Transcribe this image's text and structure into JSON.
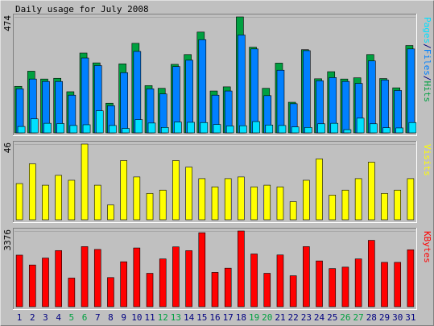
{
  "title": "Daily usage for July 2008",
  "colors": {
    "background": "#c0c0c0",
    "hits": "#00a040",
    "files": "#0080ff",
    "pages": "#00e0ff",
    "visits": "#ffff00",
    "kbytes": "#ff0000",
    "weekend_label": "#00a040",
    "weekday_label": "#000080"
  },
  "chart_data": [
    {
      "type": "bar",
      "panel": "hits-files-pages",
      "categories": [
        "1",
        "2",
        "3",
        "4",
        "5",
        "6",
        "7",
        "8",
        "9",
        "10",
        "11",
        "12",
        "13",
        "14",
        "15",
        "16",
        "17",
        "18",
        "19",
        "20",
        "21",
        "22",
        "23",
        "24",
        "25",
        "26",
        "27",
        "28",
        "29",
        "30",
        "31"
      ],
      "weekend_days": [
        "5",
        "6",
        "12",
        "13",
        "19",
        "20",
        "26",
        "27"
      ],
      "ymax_label": "474",
      "ylim": [
        0,
        474
      ],
      "legend": [
        {
          "text": "Pages",
          "color": "#00e0ff"
        },
        {
          "text": "/",
          "color": "#000080"
        },
        {
          "text": "Files",
          "color": "#0080ff"
        },
        {
          "text": "/",
          "color": "#000080"
        },
        {
          "text": "Hits",
          "color": "#00a040"
        }
      ],
      "series": [
        {
          "name": "Hits",
          "color": "#00a040",
          "values": [
            190,
            252,
            220,
            223,
            168,
            326,
            286,
            121,
            282,
            366,
            193,
            182,
            280,
            320,
            412,
            171,
            188,
            474,
            350,
            182,
            285,
            125,
            340,
            221,
            250,
            220,
            225,
            320,
            222,
            184,
            357
          ]
        },
        {
          "name": "Files",
          "color": "#0080ff",
          "values": [
            180,
            220,
            210,
            210,
            154,
            306,
            275,
            111,
            246,
            333,
            180,
            159,
            271,
            297,
            381,
            154,
            171,
            400,
            343,
            152,
            256,
            119,
            336,
            213,
            226,
            210,
            202,
            294,
            216,
            173,
            343
          ]
        },
        {
          "name": "Pages",
          "color": "#00e0ff",
          "values": [
            26,
            57,
            39,
            38,
            30,
            33,
            90,
            30,
            18,
            54,
            40,
            22,
            44,
            43,
            42,
            34,
            28,
            29,
            46,
            32,
            30,
            24,
            22,
            37,
            39,
            13,
            60,
            37,
            21,
            20,
            42
          ]
        }
      ]
    },
    {
      "type": "bar",
      "panel": "visits",
      "categories": [
        "1",
        "2",
        "3",
        "4",
        "5",
        "6",
        "7",
        "8",
        "9",
        "10",
        "11",
        "12",
        "13",
        "14",
        "15",
        "16",
        "17",
        "18",
        "19",
        "20",
        "21",
        "22",
        "23",
        "24",
        "25",
        "26",
        "27",
        "28",
        "29",
        "30",
        "31"
      ],
      "ymax_label": "46",
      "ylim": [
        0,
        46
      ],
      "legend": [
        {
          "text": "Visits",
          "color": "#ffff00"
        }
      ],
      "series": [
        {
          "name": "Visits",
          "color": "#ffff00",
          "values": [
            22,
            34,
            21,
            27,
            24,
            46,
            21,
            9,
            36,
            26,
            16,
            18,
            36,
            32,
            25,
            20,
            25,
            26,
            20,
            21,
            20,
            11,
            24,
            37,
            15,
            18,
            25,
            35,
            16,
            18,
            25
          ]
        }
      ]
    },
    {
      "type": "bar",
      "panel": "kbytes",
      "categories": [
        "1",
        "2",
        "3",
        "4",
        "5",
        "6",
        "7",
        "8",
        "9",
        "10",
        "11",
        "12",
        "13",
        "14",
        "15",
        "16",
        "17",
        "18",
        "19",
        "20",
        "21",
        "22",
        "23",
        "24",
        "25",
        "26",
        "27",
        "28",
        "29",
        "30",
        "31"
      ],
      "ymax_label": "3376",
      "ylim": [
        0,
        3376
      ],
      "legend": [
        {
          "text": "KBytes",
          "color": "#ff0000"
        }
      ],
      "series": [
        {
          "name": "KBytes",
          "color": "#ff0000",
          "values": [
            2300,
            1861,
            2170,
            2504,
            1277,
            2680,
            2555,
            1300,
            2004,
            2620,
            1489,
            2130,
            2668,
            2500,
            3300,
            1530,
            1718,
            3376,
            2352,
            1490,
            2308,
            1380,
            2680,
            2042,
            1700,
            1765,
            2130,
            2960,
            1978,
            1978,
            2540
          ]
        }
      ]
    }
  ]
}
